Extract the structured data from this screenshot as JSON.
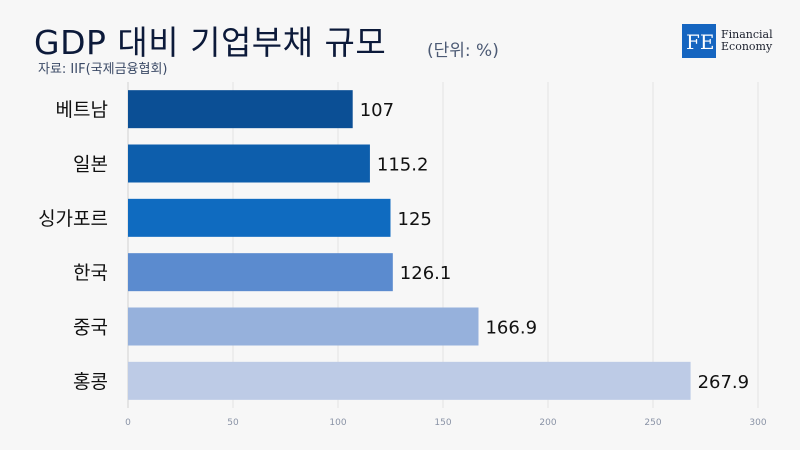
{
  "header": {
    "title": "GDP 대비 기업부채 규모",
    "unit": "(단위: %)",
    "source": "자료: IIF(국제금융협회)"
  },
  "logo": {
    "line1": "Financial",
    "line2": "Economy",
    "mark_letters": "FE",
    "color": "#1565c0"
  },
  "chart_data": {
    "type": "bar",
    "orientation": "horizontal",
    "categories": [
      "베트남",
      "일본",
      "싱가포르",
      "한국",
      "중국",
      "홍콩"
    ],
    "values": [
      107,
      115.2,
      125,
      126.1,
      166.9,
      267.9
    ],
    "value_labels": [
      "107",
      "115.2",
      "125",
      "126.1",
      "166.9",
      "267.9"
    ],
    "bar_colors": [
      "#0b4f95",
      "#0d5eac",
      "#0f6bc0",
      "#5b8bcf",
      "#96b1dc",
      "#bdcbe6"
    ],
    "xlim": [
      0,
      300
    ],
    "ticks": [
      0,
      50,
      100,
      150,
      200,
      250,
      300
    ],
    "grid": true,
    "title": "GDP 대비 기업부채 규모",
    "xlabel": "",
    "ylabel": ""
  }
}
